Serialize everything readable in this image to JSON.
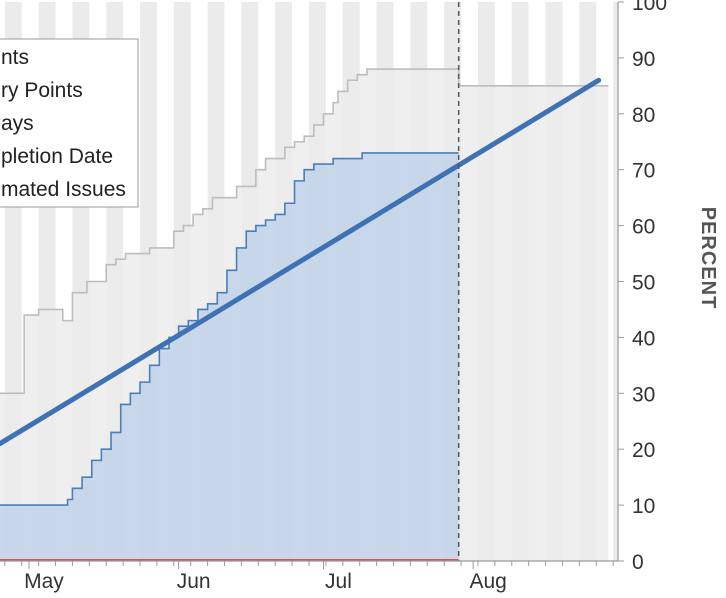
{
  "chart_data": {
    "type": "area",
    "ylabel": "PERCENT",
    "ylim": [
      0,
      100
    ],
    "yticks": [
      0,
      10,
      20,
      30,
      40,
      50,
      60,
      70,
      80,
      90,
      100
    ],
    "x_ticks": [
      {
        "label": "May",
        "day": 0
      },
      {
        "label": "Jun",
        "day": 31
      },
      {
        "label": "Jul",
        "day": 61
      },
      {
        "label": "Aug",
        "day": 92
      }
    ],
    "xlim": [
      -6,
      122
    ],
    "current_day": 89,
    "grid": true,
    "legend": {
      "placement": "top-left",
      "items": [
        "nts",
        "ry Points",
        "ays",
        "pletion Date",
        "mated Issues"
      ]
    },
    "colors": {
      "completed": "#4a7ebb",
      "completed_fill": "#c5d5e8",
      "scope": "#bdbdbd",
      "scope_fill": "#ececec",
      "trend": "#3f72b4",
      "zero_line": "#e05050",
      "band": "#ebebeb",
      "today_line": "#555555"
    },
    "series": [
      {
        "name": "Story Points",
        "role": "scope",
        "x": [
          -6,
          -1,
          -1,
          2,
          2,
          7,
          7,
          9,
          9,
          12,
          12,
          14,
          16,
          18,
          20,
          23,
          25,
          28,
          30,
          32,
          34,
          36,
          38,
          41,
          43,
          45,
          47,
          49,
          51,
          53,
          55,
          57,
          59,
          61,
          63,
          64,
          66,
          68,
          70,
          72,
          89,
          89,
          120
        ],
        "y": [
          30,
          30,
          44,
          44,
          45,
          45,
          43,
          43,
          48,
          48,
          50,
          50,
          53,
          54,
          55,
          55,
          56,
          56,
          59,
          60,
          62,
          63,
          65,
          65,
          67,
          67,
          70,
          72,
          72,
          74,
          75,
          76,
          78,
          80,
          82,
          84,
          86,
          87,
          88,
          88,
          88,
          85,
          85
        ]
      },
      {
        "name": "Completed Story Points",
        "role": "completed",
        "x": [
          -6,
          7,
          8,
          9,
          11,
          13,
          15,
          17,
          19,
          21,
          23,
          25,
          27,
          29,
          31,
          33,
          35,
          37,
          39,
          41,
          43,
          45,
          47,
          49,
          51,
          53,
          55,
          57,
          59,
          61,
          63,
          65,
          67,
          69,
          71,
          74,
          89
        ],
        "y": [
          10,
          10,
          11,
          13,
          15,
          18,
          20,
          23,
          28,
          30,
          32,
          35,
          38,
          40,
          42,
          43,
          45,
          46,
          48,
          52,
          56,
          59,
          60,
          61,
          62,
          64,
          68,
          70,
          71,
          71,
          72,
          72,
          72,
          73,
          73,
          73,
          73
        ]
      },
      {
        "name": "Completion Date",
        "role": "trend",
        "x": [
          -6,
          118
        ],
        "y": [
          21,
          86
        ]
      },
      {
        "name": "Estimated Issues",
        "role": "zero",
        "x": [
          -6,
          89
        ],
        "y": [
          0,
          0
        ]
      }
    ]
  }
}
